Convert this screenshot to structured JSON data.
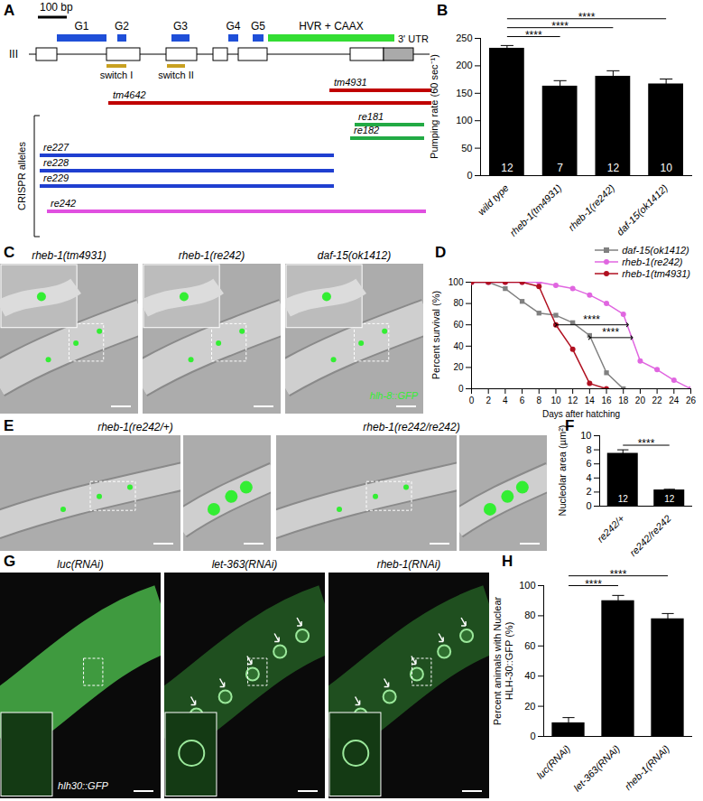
{
  "panel_letters": [
    "A",
    "B",
    "C",
    "D",
    "E",
    "F",
    "G",
    "H"
  ],
  "diagram": {
    "scale_bar": "100 bp",
    "chromosome": "III",
    "domains": [
      "G1",
      "G2",
      "G3",
      "G4",
      "G5",
      "HVR + CAAX"
    ],
    "utr": "3' UTR",
    "switches": [
      "switch I",
      "switch II"
    ],
    "deletion_alleles": [
      "tm4931",
      "tm4642"
    ],
    "crispr_label": "CRISPR alleles",
    "crispr_alleles": [
      "re181",
      "re182",
      "re227",
      "re228",
      "re229",
      "re242"
    ]
  },
  "chart_data": [
    {
      "panel": "B",
      "type": "bar",
      "categories": [
        "wild type",
        "rheb-1(tm4931)",
        "rheb-1(re242)",
        "daf-15(ok1412)"
      ],
      "values": [
        232,
        163,
        181,
        167
      ],
      "error": [
        5,
        10,
        10,
        9
      ],
      "n": [
        12,
        7,
        12,
        10
      ],
      "color": "#000000",
      "ylabel": "Pumping rate (60 sec⁻¹)",
      "ylim": [
        0,
        250
      ],
      "yticks": [
        0,
        50,
        100,
        150,
        200,
        250
      ],
      "significance": [
        {
          "from": "wild type",
          "to": "rheb-1(tm4931)",
          "label": "****"
        },
        {
          "from": "wild type",
          "to": "rheb-1(re242)",
          "label": "****"
        },
        {
          "from": "wild type",
          "to": "daf-15(ok1412)",
          "label": "****"
        }
      ]
    },
    {
      "panel": "D",
      "type": "line",
      "xlabel": "Days after hatching",
      "ylabel": "Percent survival (%)",
      "x": [
        0,
        2,
        4,
        6,
        8,
        10,
        12,
        14,
        16,
        18,
        20,
        22,
        24,
        26
      ],
      "xlim": [
        0,
        26
      ],
      "xticks": [
        0,
        2,
        4,
        6,
        8,
        10,
        12,
        14,
        16,
        18,
        20,
        22,
        24,
        26
      ],
      "ylim": [
        0,
        100
      ],
      "yticks": [
        0,
        20,
        40,
        60,
        80,
        100
      ],
      "legend": "top-right",
      "series": [
        {
          "name": "daf-15(ok1412)",
          "color": "#808080",
          "marker": "square",
          "values": [
            100,
            100,
            94,
            82,
            71,
            69,
            62,
            50,
            15,
            0,
            null,
            null,
            null,
            null
          ]
        },
        {
          "name": "rheb-1(re242)",
          "color": "#e066e0",
          "marker": "circle",
          "values": [
            100,
            100,
            100,
            100,
            100,
            97,
            94,
            88,
            80,
            70,
            26,
            18,
            8,
            0
          ]
        },
        {
          "name": "rheb-1(tm4931)",
          "color": "#b01020",
          "marker": "circle",
          "values": [
            100,
            100,
            100,
            100,
            96,
            60,
            37,
            5,
            0,
            null,
            null,
            null,
            null,
            null
          ]
        }
      ],
      "annotations": [
        {
          "text": "****",
          "x1": 10,
          "x2": 18.5,
          "y": 60
        },
        {
          "text": "****",
          "x1": 14,
          "x2": 19,
          "y": 48
        }
      ]
    },
    {
      "panel": "F",
      "type": "bar",
      "categories": [
        "re242/+",
        "re242/re242"
      ],
      "values": [
        7.5,
        2.3
      ],
      "error": [
        0.5,
        0.1
      ],
      "n": [
        12,
        12
      ],
      "color": "#000000",
      "ylabel": "Nucleolar area (µm²)",
      "ylim": [
        0,
        10
      ],
      "yticks": [
        0,
        2,
        4,
        6,
        8,
        10
      ],
      "significance": [
        {
          "from": "re242/+",
          "to": "re242/re242",
          "label": "****"
        }
      ]
    },
    {
      "panel": "H",
      "type": "bar",
      "categories": [
        "luc(RNAi)",
        "let-363(RNAi)",
        "rheb-1(RNAi)"
      ],
      "values": [
        9,
        90,
        78
      ],
      "error": [
        3.5,
        3.5,
        3.5
      ],
      "n": [],
      "color": "#000000",
      "ylabel": "Percent animals with Nuclear HLH-30::GFP (%)",
      "ylim": [
        0,
        100
      ],
      "yticks": [
        0,
        20,
        40,
        60,
        80,
        100
      ],
      "significance": [
        {
          "from": "luc(RNAi)",
          "to": "let-363(RNAi)",
          "label": "****"
        },
        {
          "from": "luc(RNAi)",
          "to": "rheb-1(RNAi)",
          "label": "****"
        }
      ]
    }
  ],
  "images": {
    "C": {
      "titles": [
        "rheb-1(tm4931)",
        "rheb-1(re242)",
        "daf-15(ok1412)"
      ],
      "reporter": "hlh-8::GFP"
    },
    "E": {
      "titles": [
        "rheb-1(re242/+)",
        "rheb-1(re242/re242)"
      ]
    },
    "G": {
      "titles": [
        "luc(RNAi)",
        "let-363(RNAi)",
        "rheb-1(RNAi)"
      ],
      "reporter": "hlh30::GFP"
    }
  }
}
